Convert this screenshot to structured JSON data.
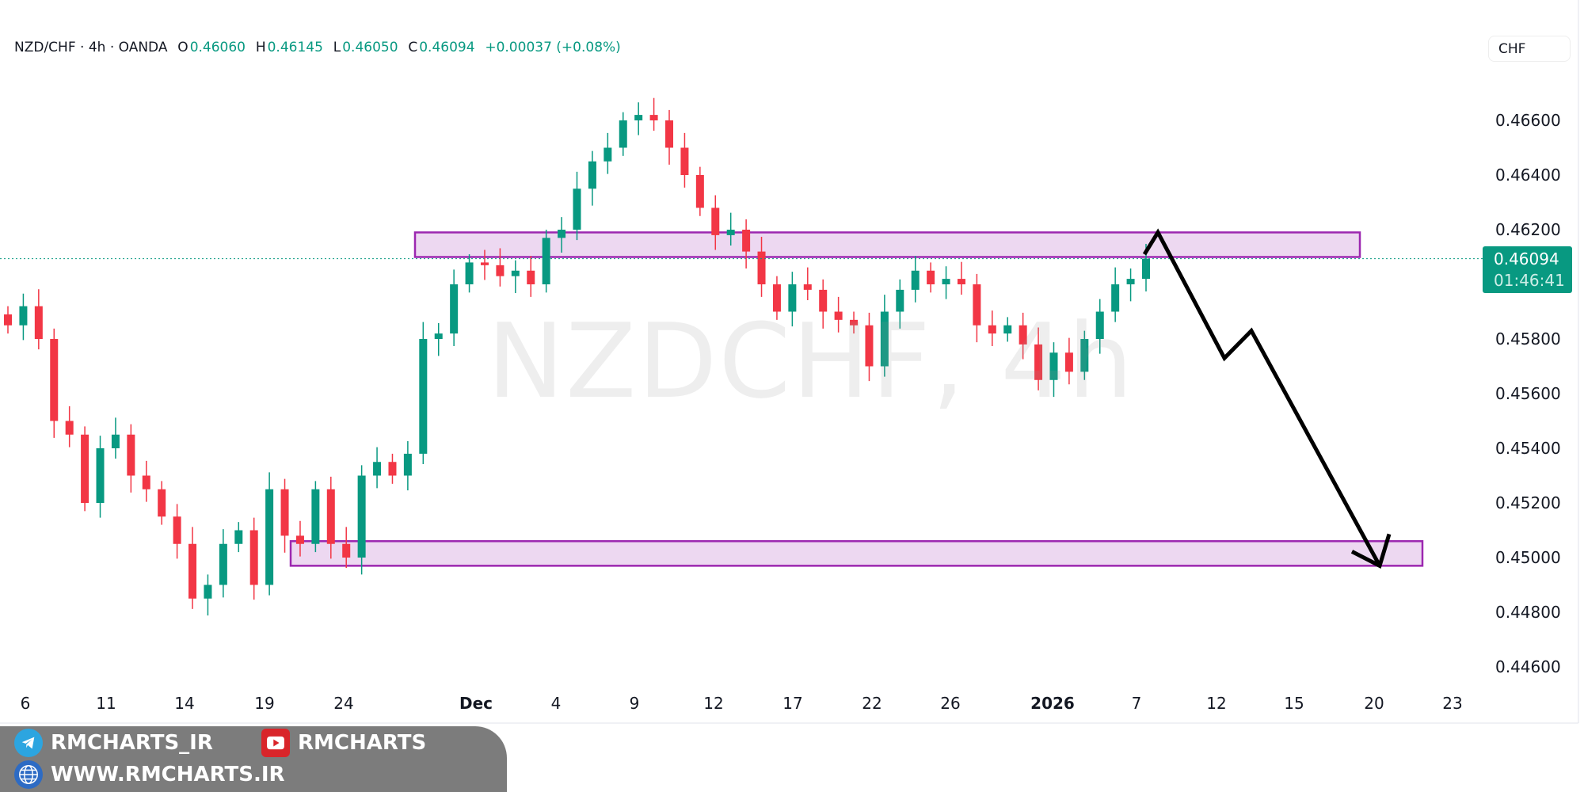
{
  "header": {
    "symbol": "NZD/CHF · 4h · OANDA",
    "open_label": "O",
    "open": "0.46060",
    "high_label": "H",
    "high": "0.46145",
    "low_label": "L",
    "low": "0.46050",
    "close_label": "C",
    "close": "0.46094",
    "change": "+0.00037 (+0.08%)"
  },
  "currency_button": "CHF",
  "price_badge": {
    "price": "0.46094",
    "countdown": "01:46:41",
    "color": "#089981"
  },
  "watermark": "NZDCHF, 4h",
  "chart_data": {
    "type": "candlestick",
    "ylim": [
      0.4452,
      0.4675
    ],
    "y_ticks": [
      "0.46600",
      "0.46400",
      "0.46200",
      "0.45800",
      "0.45600",
      "0.45400",
      "0.45200",
      "0.45000",
      "0.44800",
      "0.44600"
    ],
    "y_tick_values": [
      0.466,
      0.464,
      0.462,
      0.458,
      0.456,
      0.454,
      0.452,
      0.45,
      0.448,
      0.446
    ],
    "x_ticks": [
      "6",
      "11",
      "14",
      "19",
      "24",
      "Dec",
      "4",
      "9",
      "12",
      "17",
      "22",
      "26",
      "2026",
      "7",
      "12",
      "15",
      "20",
      "23"
    ],
    "x_tick_bold": [
      "Dec",
      "2026"
    ],
    "closes": [
      0.4585,
      0.4592,
      0.458,
      0.455,
      0.4545,
      0.452,
      0.454,
      0.4545,
      0.453,
      0.4525,
      0.4515,
      0.4505,
      0.4485,
      0.449,
      0.4505,
      0.451,
      0.449,
      0.4525,
      0.4508,
      0.4505,
      0.4525,
      0.4505,
      0.45,
      0.453,
      0.4535,
      0.453,
      0.4538,
      0.458,
      0.4582,
      0.46,
      0.4608,
      0.4607,
      0.4603,
      0.4605,
      0.46,
      0.4617,
      0.462,
      0.4635,
      0.4645,
      0.465,
      0.466,
      0.4662,
      0.466,
      0.465,
      0.464,
      0.4628,
      0.4618,
      0.462,
      0.4612,
      0.46,
      0.459,
      0.46,
      0.4598,
      0.459,
      0.4587,
      0.4585,
      0.457,
      0.459,
      0.4598,
      0.4605,
      0.46,
      0.4602,
      0.46,
      0.4585,
      0.4582,
      0.4585,
      0.4578,
      0.4565,
      0.4575,
      0.4568,
      0.458,
      0.459,
      0.46,
      0.4602,
      0.46094
    ],
    "current_price": 0.46094,
    "up_color": "#089981",
    "down_color": "#f23645",
    "zones": [
      {
        "from": 0.461,
        "to": 0.4619
      },
      {
        "from": 0.4497,
        "to": 0.4506
      }
    ],
    "zone_color": "#9c27b0",
    "projection_prices": [
      0.4611,
      0.4619,
      0.4573,
      0.4583,
      0.4497
    ]
  },
  "branding": {
    "telegram": "RMCHARTS_IR",
    "youtube": "RMCHARTS",
    "website": "WWW.RMCHARTS.IR"
  }
}
